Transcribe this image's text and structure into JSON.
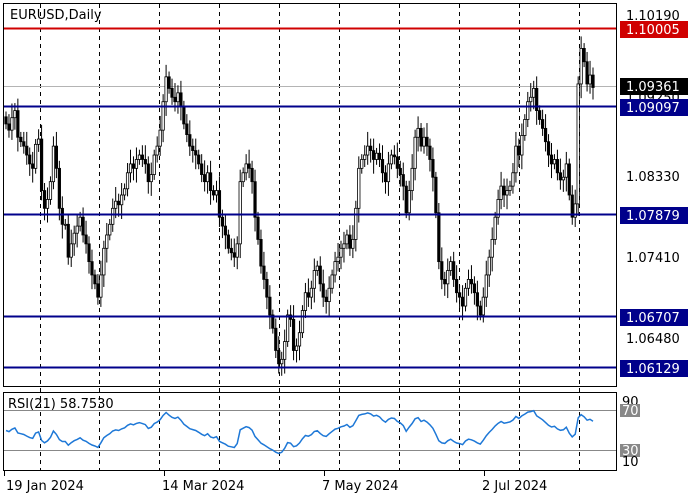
{
  "window": {
    "title": "EURUSD,Daily"
  },
  "colors": {
    "background": "#ffffff",
    "candle": "#000000",
    "grid": "#000000",
    "support": "#00008b",
    "resistance": "#d00000",
    "current_price_box": "#000000",
    "rsi_line": "#1e78d7",
    "rsi_level": "#888888"
  },
  "price_axis": {
    "ticks": [
      "1.10190",
      "1.09250",
      "1.08330",
      "1.07410",
      "1.06480"
    ],
    "current_price": "1.09361"
  },
  "levels": [
    {
      "label": "1.10005",
      "kind": "resistance"
    },
    {
      "label": "1.09097",
      "kind": "support"
    },
    {
      "label": "1.07879",
      "kind": "support"
    },
    {
      "label": "1.06707",
      "kind": "support"
    },
    {
      "label": "1.06129",
      "kind": "support"
    }
  ],
  "rsi": {
    "title": "RSI(21) 58.7530",
    "ticks": [
      "90",
      "70",
      "30",
      "10"
    ]
  },
  "time_axis": {
    "labels": [
      "19 Jan 2024",
      "14 Mar 2024",
      "7 May 2024",
      "2 Jul 2024"
    ]
  },
  "chart_data": {
    "type": "candlestick",
    "symbol": "EURUSD",
    "timeframe": "Daily",
    "ylim": [
      1.06,
      1.103
    ],
    "levels": [
      1.10005,
      1.09097,
      1.07879,
      1.06707,
      1.06129
    ],
    "closes": [
      1.0895,
      1.0888,
      1.0902,
      1.091,
      1.088,
      1.0875,
      1.087,
      1.086,
      1.085,
      1.0845,
      1.0872,
      1.0878,
      1.082,
      1.08,
      1.081,
      1.083,
      1.087,
      1.0845,
      1.08,
      1.0782,
      1.0782,
      1.0745,
      1.076,
      1.0772,
      1.078,
      1.079,
      1.077,
      1.076,
      1.074,
      1.0725,
      1.0715,
      1.07,
      1.0725,
      1.0755,
      1.077,
      1.0782,
      1.08,
      1.0808,
      1.0804,
      1.0815,
      1.0822,
      1.084,
      1.085,
      1.0845,
      1.0855,
      1.086,
      1.0855,
      1.085,
      1.083,
      1.0838,
      1.086,
      1.087,
      1.0888,
      1.092,
      1.0948,
      1.0935,
      1.0925,
      1.092,
      1.093,
      1.0915,
      1.0895,
      1.0883,
      1.087,
      1.0865,
      1.086,
      1.085,
      1.0838,
      1.083,
      1.084,
      1.082,
      1.0815,
      1.082,
      1.079,
      1.078,
      1.077,
      1.0755,
      1.075,
      1.0745,
      1.076,
      1.083,
      1.084,
      1.085,
      1.0845,
      1.083,
      1.079,
      1.0765,
      1.0735,
      1.072,
      1.07,
      1.068,
      1.0665,
      1.064,
      1.0625,
      1.063,
      1.065,
      1.068,
      1.0675,
      1.064,
      1.0645,
      1.066,
      1.0685,
      1.0705,
      1.07,
      1.071,
      1.073,
      1.0735,
      1.0715,
      1.07,
      1.0695,
      1.071,
      1.0725,
      1.074,
      1.0745,
      1.0755,
      1.076,
      1.077,
      1.0755,
      1.0765,
      1.08,
      1.0845,
      1.0855,
      1.086,
      1.087,
      1.0865,
      1.0855,
      1.0862,
      1.0855,
      1.084,
      1.083,
      1.085,
      1.086,
      1.0858,
      1.0845,
      1.0838,
      1.0825,
      1.0795,
      1.082,
      1.0845,
      1.088,
      1.089,
      1.087,
      1.088,
      1.087,
      1.0855,
      1.0835,
      1.0795,
      1.074,
      1.072,
      1.0715,
      1.073,
      1.074,
      1.072,
      1.0705,
      1.07,
      1.069,
      1.071,
      1.072,
      1.0715,
      1.0705,
      1.069,
      1.068,
      1.07,
      1.0725,
      1.0745,
      1.0765,
      1.079,
      1.081,
      1.0825,
      1.0815,
      1.082,
      1.0825,
      1.084,
      1.087,
      1.086,
      1.0882,
      1.09,
      1.092,
      1.0925,
      1.0935,
      1.091,
      1.09,
      1.089,
      1.0875,
      1.086,
      1.085,
      1.0855,
      1.084,
      1.0832,
      1.0835,
      1.085,
      1.0815,
      1.079,
      1.0805,
      1.094,
      1.098,
      1.0965,
      1.094,
      1.095,
      1.0936
    ]
  }
}
